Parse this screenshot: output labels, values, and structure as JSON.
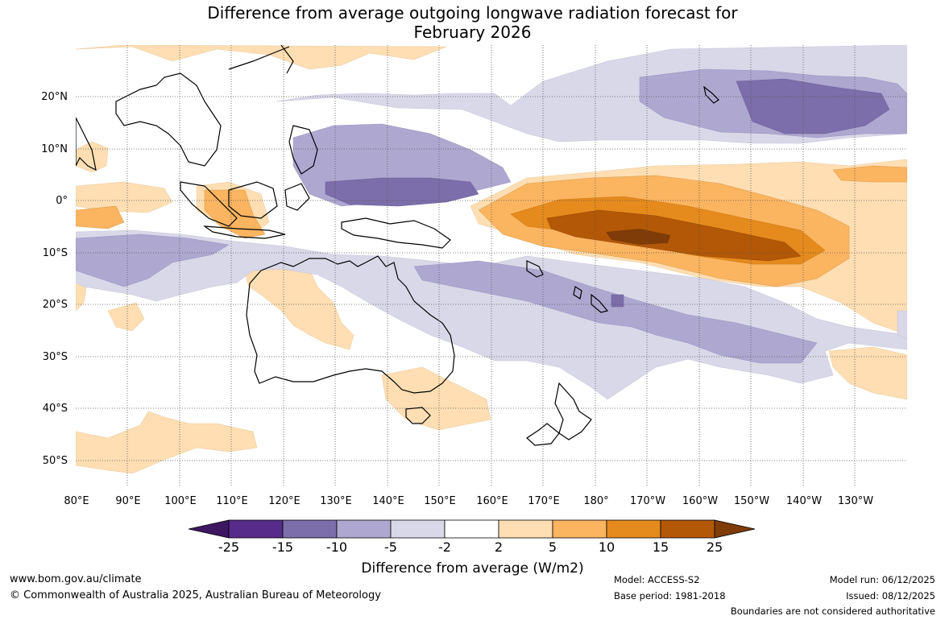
{
  "title": {
    "line1": "Difference from average outgoing longwave radiation forecast for",
    "line2": "February 2026"
  },
  "map": {
    "lat_labels": [
      "20°N",
      "10°N",
      "0°",
      "10°S",
      "20°S",
      "30°S",
      "40°S",
      "50°S"
    ],
    "lon_labels": [
      "80°E",
      "90°E",
      "100°E",
      "110°E",
      "120°E",
      "130°E",
      "140°E",
      "150°E",
      "160°E",
      "170°E",
      "180°",
      "170°W",
      "160°W",
      "150°W",
      "140°W",
      "130°W"
    ]
  },
  "colorbar": {
    "labels": [
      "-25",
      "-15",
      "-10",
      "-5",
      "-2",
      "2",
      "5",
      "10",
      "15",
      "25"
    ],
    "colors": [
      "#3d1760",
      "#572b8a",
      "#7b6eaa",
      "#aea8d0",
      "#d9d8e8",
      "#ffffff",
      "#fedeb2",
      "#fbb460",
      "#e58a1c",
      "#b35806",
      "#7f3b08"
    ],
    "title": "Difference from average (W/m2)"
  },
  "footer": {
    "url": "www.bom.gov.au/climate",
    "copyright": "© Commonwealth of Australia 2025, Australian Bureau of Meteorology",
    "model": "Model: ACCESS-S2",
    "base_period": "Base period: 1981-2018",
    "model_run": "Model run: 06/12/2025",
    "issued": "Issued: 08/12/2025",
    "disclaimer": "Boundaries are not considered authoritative"
  }
}
